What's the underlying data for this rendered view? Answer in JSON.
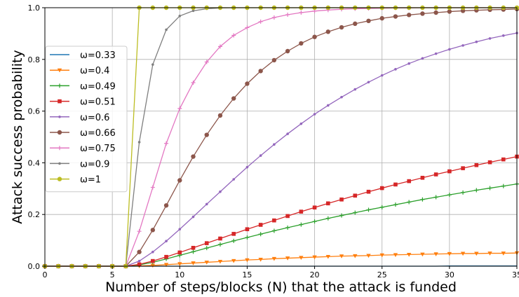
{
  "chart_data": {
    "type": "line",
    "title": "",
    "xlabel": "Number of steps/blocks (N) that the attack is funded",
    "ylabel": "Attack success probability",
    "xlim": [
      0,
      35
    ],
    "ylim": [
      0,
      1
    ],
    "xticks": [
      0,
      5,
      10,
      15,
      20,
      25,
      30,
      35
    ],
    "yticks": [
      0.0,
      0.2,
      0.4,
      0.6,
      0.8,
      1.0
    ],
    "xtick_labels": [
      "0",
      "5",
      "10",
      "15",
      "20",
      "25",
      "30",
      "35"
    ],
    "ytick_labels": [
      "0.0",
      "0.2",
      "0.4",
      "0.6",
      "0.8",
      "1.0"
    ],
    "grid": true,
    "legend_position": "upper-left",
    "x": [
      0,
      1,
      2,
      3,
      4,
      5,
      6,
      7,
      8,
      9,
      10,
      11,
      12,
      13,
      14,
      15,
      16,
      17,
      18,
      19,
      20,
      21,
      22,
      23,
      24,
      25,
      26,
      27,
      28,
      29,
      30,
      31,
      32,
      33,
      34,
      35
    ],
    "series": [
      {
        "name": "ω=0.33",
        "color": "#1f77b4",
        "marker": "none",
        "values": [
          0,
          0,
          0,
          0,
          0,
          0,
          0,
          0,
          0,
          0,
          0,
          0,
          0,
          0,
          0,
          0,
          0,
          0,
          0,
          0,
          0,
          0,
          0,
          0,
          0,
          0,
          0,
          0,
          0,
          0,
          0.001,
          0.001,
          0.001,
          0.001,
          0.001,
          0.001
        ]
      },
      {
        "name": "ω=0.4",
        "color": "#ff7f0e",
        "marker": "triangle-down",
        "values": [
          0,
          0,
          0,
          0,
          0,
          0,
          0,
          0.001,
          0.003,
          0.006,
          0.009,
          0.012,
          0.015,
          0.018,
          0.021,
          0.024,
          0.026,
          0.029,
          0.031,
          0.033,
          0.035,
          0.037,
          0.039,
          0.04,
          0.041,
          0.043,
          0.044,
          0.045,
          0.046,
          0.047,
          0.048,
          0.049,
          0.049,
          0.05,
          0.05,
          0.051
        ]
      },
      {
        "name": "ω=0.49",
        "color": "#2ca02c",
        "marker": "plus",
        "values": [
          0,
          0,
          0,
          0,
          0,
          0,
          0,
          0.005,
          0.015,
          0.028,
          0.042,
          0.056,
          0.07,
          0.084,
          0.098,
          0.111,
          0.124,
          0.137,
          0.149,
          0.161,
          0.173,
          0.185,
          0.196,
          0.207,
          0.218,
          0.228,
          0.238,
          0.248,
          0.258,
          0.267,
          0.276,
          0.285,
          0.294,
          0.302,
          0.31,
          0.318
        ]
      },
      {
        "name": "ω=0.51",
        "color": "#d62728",
        "marker": "square",
        "values": [
          0,
          0,
          0,
          0,
          0,
          0,
          0,
          0.007,
          0.02,
          0.036,
          0.053,
          0.071,
          0.089,
          0.107,
          0.125,
          0.143,
          0.16,
          0.177,
          0.194,
          0.211,
          0.227,
          0.243,
          0.258,
          0.273,
          0.288,
          0.302,
          0.316,
          0.329,
          0.342,
          0.355,
          0.367,
          0.379,
          0.391,
          0.402,
          0.413,
          0.424
        ]
      },
      {
        "name": "ω=0.6",
        "color": "#9467bd",
        "marker": "dot",
        "values": [
          0,
          0,
          0,
          0,
          0,
          0,
          0,
          0.02,
          0.055,
          0.097,
          0.143,
          0.191,
          0.24,
          0.288,
          0.336,
          0.383,
          0.428,
          0.471,
          0.512,
          0.551,
          0.588,
          0.622,
          0.654,
          0.684,
          0.712,
          0.738,
          0.762,
          0.784,
          0.804,
          0.822,
          0.839,
          0.854,
          0.868,
          0.881,
          0.892,
          0.902
        ]
      },
      {
        "name": "ω=0.66",
        "color": "#8c564b",
        "marker": "circle",
        "values": [
          0,
          0,
          0,
          0,
          0,
          0,
          0,
          0.055,
          0.14,
          0.235,
          0.332,
          0.424,
          0.508,
          0.583,
          0.649,
          0.706,
          0.755,
          0.797,
          0.832,
          0.862,
          0.887,
          0.907,
          0.924,
          0.938,
          0.949,
          0.959,
          0.966,
          0.972,
          0.977,
          0.981,
          0.985,
          0.988,
          0.99,
          0.992,
          0.993,
          0.995
        ]
      },
      {
        "name": "ω=0.75",
        "color": "#e377c2",
        "marker": "plus",
        "values": [
          0,
          0,
          0,
          0,
          0,
          0,
          0,
          0.135,
          0.305,
          0.475,
          0.61,
          0.71,
          0.79,
          0.85,
          0.893,
          0.923,
          0.946,
          0.962,
          0.973,
          0.981,
          0.987,
          0.991,
          0.994,
          0.996,
          0.997,
          0.998,
          0.999,
          0.999,
          1,
          1,
          1,
          1,
          1,
          1,
          1,
          1
        ]
      },
      {
        "name": "ω=0.9",
        "color": "#7f7f7f",
        "marker": "dot",
        "values": [
          0,
          0,
          0,
          0,
          0,
          0,
          0,
          0.48,
          0.78,
          0.915,
          0.968,
          0.988,
          0.996,
          0.999,
          1,
          1,
          1,
          1,
          1,
          1,
          1,
          1,
          1,
          1,
          1,
          1,
          1,
          1,
          1,
          1,
          1,
          1,
          1,
          1,
          1,
          1
        ]
      },
      {
        "name": "ω=1",
        "color": "#bcbd22",
        "marker": "circle",
        "values": [
          0,
          0,
          0,
          0,
          0,
          0,
          0,
          1,
          1,
          1,
          1,
          1,
          1,
          1,
          1,
          1,
          1,
          1,
          1,
          1,
          1,
          1,
          1,
          1,
          1,
          1,
          1,
          1,
          1,
          1,
          1,
          1,
          1,
          1,
          1,
          1
        ]
      }
    ]
  }
}
